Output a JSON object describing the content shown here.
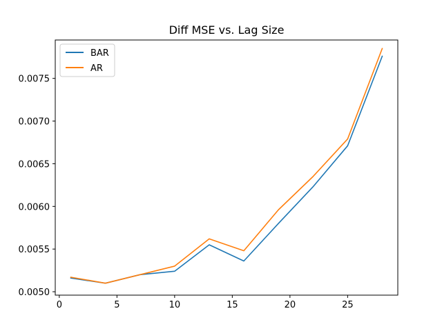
{
  "chart_data": {
    "type": "line",
    "title": "Diff MSE vs. Lag Size",
    "xlabel": "",
    "ylabel": "",
    "x": [
      1,
      4,
      7,
      10,
      13,
      16,
      19,
      22,
      25,
      28
    ],
    "series": [
      {
        "name": "BAR",
        "color": "#1f77b4",
        "values": [
          0.00516,
          0.0051,
          0.0052,
          0.00524,
          0.00555,
          0.00536,
          0.0058,
          0.00623,
          0.00671,
          0.00776
        ]
      },
      {
        "name": "AR",
        "color": "#ff7f0e",
        "values": [
          0.00517,
          0.0051,
          0.0052,
          0.0053,
          0.00562,
          0.00548,
          0.00596,
          0.00635,
          0.00679,
          0.00785
        ]
      }
    ],
    "xlim": [
      -0.35,
      29.35
    ],
    "ylim": [
      0.00496,
      0.00795
    ],
    "xticks": [
      0,
      5,
      10,
      15,
      20,
      25
    ],
    "xtick_labels": [
      "0",
      "5",
      "10",
      "15",
      "20",
      "25"
    ],
    "yticks": [
      0.005,
      0.0055,
      0.006,
      0.0065,
      0.007,
      0.0075
    ],
    "ytick_labels": [
      "0.0050",
      "0.0055",
      "0.0060",
      "0.0065",
      "0.0070",
      "0.0075"
    ],
    "grid": false,
    "legend_position": "top-left"
  }
}
